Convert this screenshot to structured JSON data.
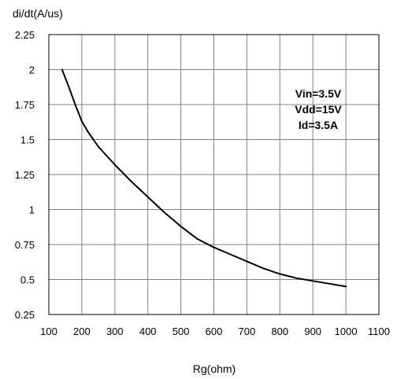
{
  "chart_data": {
    "type": "line",
    "ylabel": "di/dt(A/us)",
    "xlabel": "Rg(ohm)",
    "xlim": [
      100,
      1100
    ],
    "ylim": [
      0.25,
      2.25
    ],
    "x_ticks": [
      "100",
      "200",
      "300",
      "400",
      "500",
      "600",
      "700",
      "800",
      "900",
      "1000",
      "1100"
    ],
    "y_ticks": [
      "0.25",
      "0.5",
      "0.75",
      "1",
      "1.25",
      "1.5",
      "1.75",
      "2",
      "2.25"
    ],
    "grid": true,
    "annotations": [
      "Vin=3.5V",
      "Vdd=15V",
      "Id=3.5A"
    ],
    "series": [
      {
        "color": "#000000",
        "x": [
          140,
          160,
          180,
          200,
          220,
          250,
          300,
          350,
          400,
          450,
          500,
          550,
          600,
          650,
          700,
          750,
          800,
          850,
          900,
          950,
          1000
        ],
        "y": [
          2.0,
          1.88,
          1.75,
          1.63,
          1.55,
          1.45,
          1.32,
          1.2,
          1.09,
          0.98,
          0.88,
          0.79,
          0.73,
          0.68,
          0.63,
          0.58,
          0.54,
          0.51,
          0.49,
          0.47,
          0.45
        ]
      }
    ]
  }
}
